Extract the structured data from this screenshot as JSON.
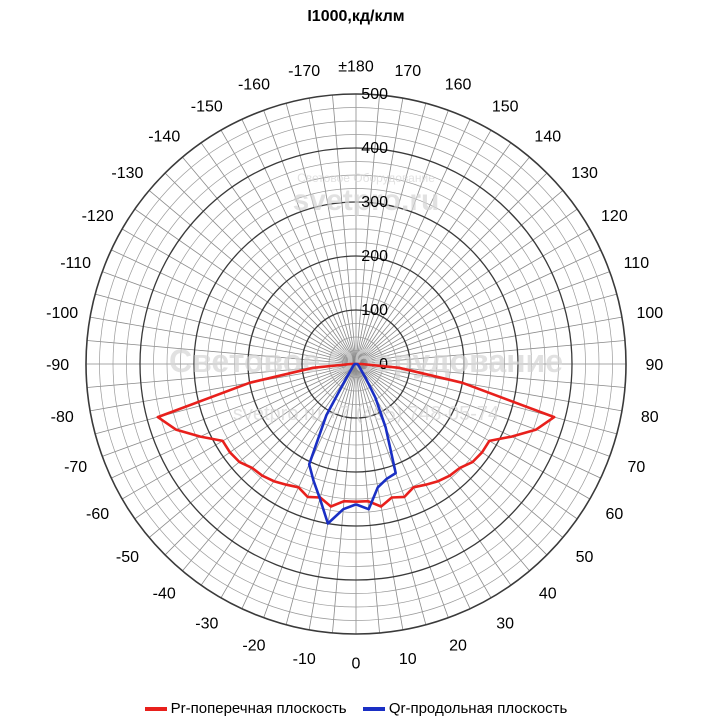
{
  "chart_data": {
    "type": "polar-line",
    "title": "I1000,кд/клм",
    "r_range": [
      0,
      500
    ],
    "r_ticks": [
      0,
      100,
      200,
      300,
      400,
      500
    ],
    "angle_ticks": [
      {
        "deg": 0,
        "label": "0"
      },
      {
        "deg": 10,
        "label": "10"
      },
      {
        "deg": 20,
        "label": "20"
      },
      {
        "deg": 30,
        "label": "30"
      },
      {
        "deg": 40,
        "label": "40"
      },
      {
        "deg": 50,
        "label": "50"
      },
      {
        "deg": 60,
        "label": "60"
      },
      {
        "deg": 70,
        "label": "70"
      },
      {
        "deg": 80,
        "label": "80"
      },
      {
        "deg": 90,
        "label": "90"
      },
      {
        "deg": 100,
        "label": "100"
      },
      {
        "deg": 110,
        "label": "110"
      },
      {
        "deg": 120,
        "label": "120"
      },
      {
        "deg": 130,
        "label": "130"
      },
      {
        "deg": 140,
        "label": "140"
      },
      {
        "deg": 150,
        "label": "150"
      },
      {
        "deg": 160,
        "label": "160"
      },
      {
        "deg": 170,
        "label": "170"
      },
      {
        "deg": 180,
        "label": "±180"
      },
      {
        "deg": -10,
        "label": "-10"
      },
      {
        "deg": -20,
        "label": "-20"
      },
      {
        "deg": -30,
        "label": "-30"
      },
      {
        "deg": -40,
        "label": "-40"
      },
      {
        "deg": -50,
        "label": "-50"
      },
      {
        "deg": -60,
        "label": "-60"
      },
      {
        "deg": -70,
        "label": "-70"
      },
      {
        "deg": -80,
        "label": "-80"
      },
      {
        "deg": -90,
        "label": "-90"
      },
      {
        "deg": -100,
        "label": "-100"
      },
      {
        "deg": -110,
        "label": "-110"
      },
      {
        "deg": -120,
        "label": "-120"
      },
      {
        "deg": -130,
        "label": "-130"
      },
      {
        "deg": -140,
        "label": "-140"
      },
      {
        "deg": -150,
        "label": "-150"
      },
      {
        "deg": -160,
        "label": "-160"
      },
      {
        "deg": -170,
        "label": "-170"
      }
    ],
    "grid": true,
    "legend_position": "bottom",
    "series": [
      {
        "name": "Pr-поперечная плоскость",
        "color": "#e8201c",
        "points": [
          [
            0,
            255
          ],
          [
            5,
            255
          ],
          [
            10,
            268
          ],
          [
            15,
            256
          ],
          [
            20,
            262
          ],
          [
            25,
            252
          ],
          [
            30,
            258
          ],
          [
            35,
            265
          ],
          [
            40,
            270
          ],
          [
            45,
            272
          ],
          [
            50,
            282
          ],
          [
            55,
            285
          ],
          [
            60,
            285
          ],
          [
            65,
            318
          ],
          [
            70,
            355
          ],
          [
            75,
            380
          ],
          [
            80,
            200
          ],
          [
            85,
            80
          ],
          [
            90,
            10
          ],
          [
            -90,
            10
          ],
          [
            -85,
            80
          ],
          [
            -80,
            200
          ],
          [
            -75,
            380
          ],
          [
            -70,
            355
          ],
          [
            -65,
            318
          ],
          [
            -60,
            285
          ],
          [
            -55,
            285
          ],
          [
            -50,
            282
          ],
          [
            -45,
            272
          ],
          [
            -40,
            270
          ],
          [
            -35,
            265
          ],
          [
            -30,
            258
          ],
          [
            -25,
            252
          ],
          [
            -20,
            262
          ],
          [
            -15,
            256
          ],
          [
            -10,
            268
          ],
          [
            -5,
            255
          ],
          [
            0,
            255
          ]
        ]
      },
      {
        "name": "Qr-продольная плоскость",
        "color": "#1a2fc4",
        "points": [
          [
            0,
            260
          ],
          [
            5,
            270
          ],
          [
            10,
            232
          ],
          [
            15,
            220
          ],
          [
            20,
            215
          ],
          [
            25,
            130
          ],
          [
            30,
            72
          ],
          [
            35,
            30
          ],
          [
            40,
            15
          ],
          [
            50,
            8
          ],
          [
            70,
            4
          ],
          [
            90,
            2
          ],
          [
            -90,
            2
          ],
          [
            -70,
            4
          ],
          [
            -50,
            8
          ],
          [
            -40,
            15
          ],
          [
            -35,
            30
          ],
          [
            -30,
            110
          ],
          [
            -25,
            205
          ],
          [
            -20,
            230
          ],
          [
            -15,
            258
          ],
          [
            -10,
            300
          ],
          [
            -5,
            270
          ],
          [
            0,
            260
          ]
        ]
      }
    ]
  },
  "watermark": {
    "top_small": "Световое Оборудование",
    "top_large": "svetpro.ru",
    "center_large": "Световое Оборудование",
    "center_small": "svetpro.ru  +7 (495) 748-05-74"
  }
}
